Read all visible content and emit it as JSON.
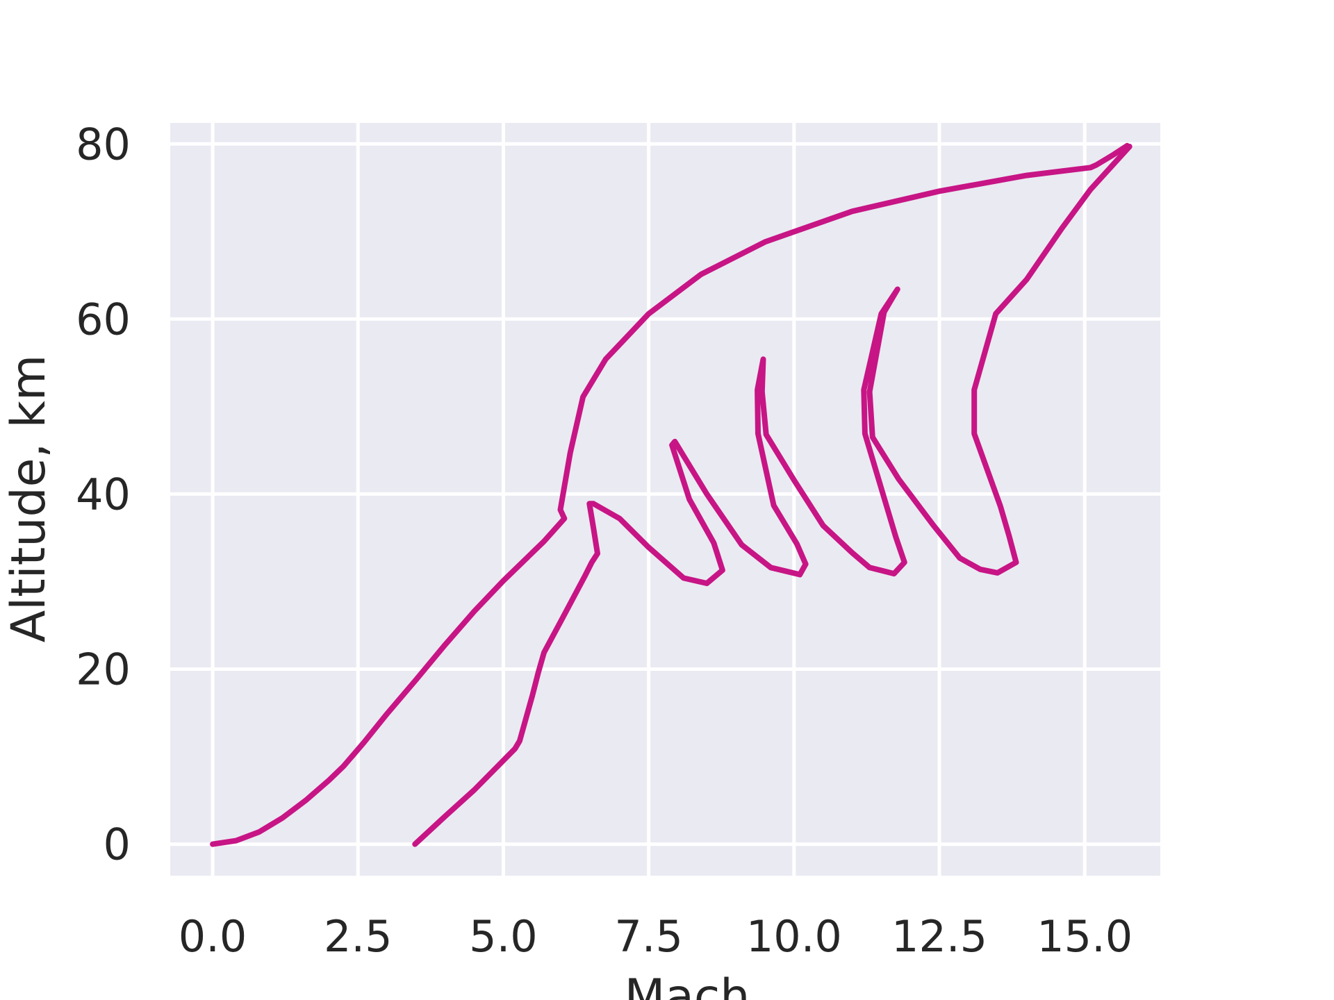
{
  "chart_data": {
    "type": "line",
    "title": "",
    "xlabel": "Mach",
    "ylabel": "Altitude, km",
    "xlim": [
      -0.73,
      16.3
    ],
    "ylim": [
      -3.6,
      82.4
    ],
    "xticks": [
      0.0,
      2.5,
      5.0,
      7.5,
      10.0,
      12.5,
      15.0
    ],
    "xtick_labels": [
      "0.0",
      "2.5",
      "5.0",
      "7.5",
      "10.0",
      "12.5",
      "15.0"
    ],
    "yticks": [
      0,
      20,
      40,
      60,
      80
    ],
    "ytick_labels": [
      "0",
      "20",
      "40",
      "60",
      "80"
    ],
    "grid": true,
    "legend": "none",
    "colors": {
      "background": "#eaeaf2",
      "grid": "#ffffff",
      "line": "#c71585",
      "text": "#262626"
    },
    "series": [
      {
        "points": [
          [
            0.0,
            0.0
          ],
          [
            0.4,
            0.4
          ],
          [
            0.8,
            1.4
          ],
          [
            1.2,
            3.0
          ],
          [
            1.6,
            5.0
          ],
          [
            2.0,
            7.3
          ],
          [
            2.25,
            8.9
          ],
          [
            2.6,
            11.6
          ],
          [
            3.0,
            14.9
          ],
          [
            3.5,
            18.8
          ],
          [
            4.0,
            22.8
          ],
          [
            4.5,
            26.6
          ],
          [
            5.0,
            30.1
          ],
          [
            5.7,
            34.6
          ],
          [
            6.05,
            37.2
          ],
          [
            5.98,
            38.2
          ],
          [
            6.15,
            44.7
          ],
          [
            6.37,
            51.1
          ],
          [
            6.76,
            55.4
          ],
          [
            7.5,
            60.6
          ],
          [
            8.4,
            65.1
          ],
          [
            9.5,
            68.8
          ],
          [
            11.0,
            72.3
          ],
          [
            12.5,
            74.6
          ],
          [
            14.0,
            76.4
          ],
          [
            15.1,
            77.3
          ],
          [
            15.2,
            77.6
          ],
          [
            15.5,
            78.8
          ],
          [
            15.73,
            79.8
          ]
        ]
      },
      {
        "points": [
          [
            3.48,
            0.0
          ],
          [
            4.0,
            3.2
          ],
          [
            4.5,
            6.2
          ],
          [
            5.2,
            10.9
          ],
          [
            5.28,
            11.8
          ],
          [
            5.5,
            17.0
          ],
          [
            5.6,
            19.6
          ],
          [
            5.7,
            21.9
          ],
          [
            6.0,
            25.6
          ],
          [
            6.4,
            30.6
          ],
          [
            6.52,
            32.2
          ],
          [
            6.62,
            33.2
          ],
          [
            6.55,
            36.1
          ],
          [
            6.48,
            38.9
          ],
          [
            6.55,
            38.9
          ],
          [
            7.0,
            37.2
          ],
          [
            7.5,
            33.9
          ],
          [
            8.1,
            30.4
          ],
          [
            8.5,
            29.8
          ],
          [
            8.77,
            31.3
          ],
          [
            8.62,
            34.4
          ],
          [
            8.2,
            39.4
          ],
          [
            7.9,
            45.6
          ],
          [
            7.95,
            46.0
          ],
          [
            8.5,
            40.0
          ],
          [
            9.1,
            34.2
          ],
          [
            9.6,
            31.6
          ],
          [
            10.1,
            30.8
          ],
          [
            10.2,
            32.0
          ],
          [
            10.05,
            34.3
          ],
          [
            9.65,
            38.7
          ],
          [
            9.38,
            46.9
          ],
          [
            9.37,
            51.9
          ],
          [
            9.47,
            55.4
          ],
          [
            9.45,
            51.7
          ],
          [
            9.52,
            46.8
          ],
          [
            10.0,
            41.6
          ],
          [
            10.5,
            36.4
          ],
          [
            11.0,
            33.3
          ],
          [
            11.3,
            31.6
          ],
          [
            11.72,
            30.9
          ],
          [
            11.9,
            32.2
          ],
          [
            11.75,
            35.1
          ],
          [
            11.22,
            46.9
          ],
          [
            11.2,
            51.9
          ],
          [
            11.5,
            60.6
          ],
          [
            11.78,
            63.4
          ],
          [
            11.55,
            60.8
          ],
          [
            11.3,
            51.7
          ],
          [
            11.35,
            46.5
          ],
          [
            11.8,
            41.7
          ],
          [
            12.4,
            36.4
          ],
          [
            12.85,
            32.7
          ],
          [
            13.2,
            31.4
          ],
          [
            13.5,
            31.0
          ],
          [
            13.82,
            32.2
          ],
          [
            13.7,
            35.2
          ],
          [
            13.55,
            38.6
          ],
          [
            13.1,
            46.9
          ],
          [
            13.1,
            51.9
          ],
          [
            13.47,
            60.6
          ],
          [
            14.0,
            64.5
          ],
          [
            14.6,
            70.3
          ],
          [
            15.1,
            74.8
          ],
          [
            15.77,
            79.7
          ]
        ]
      }
    ]
  }
}
